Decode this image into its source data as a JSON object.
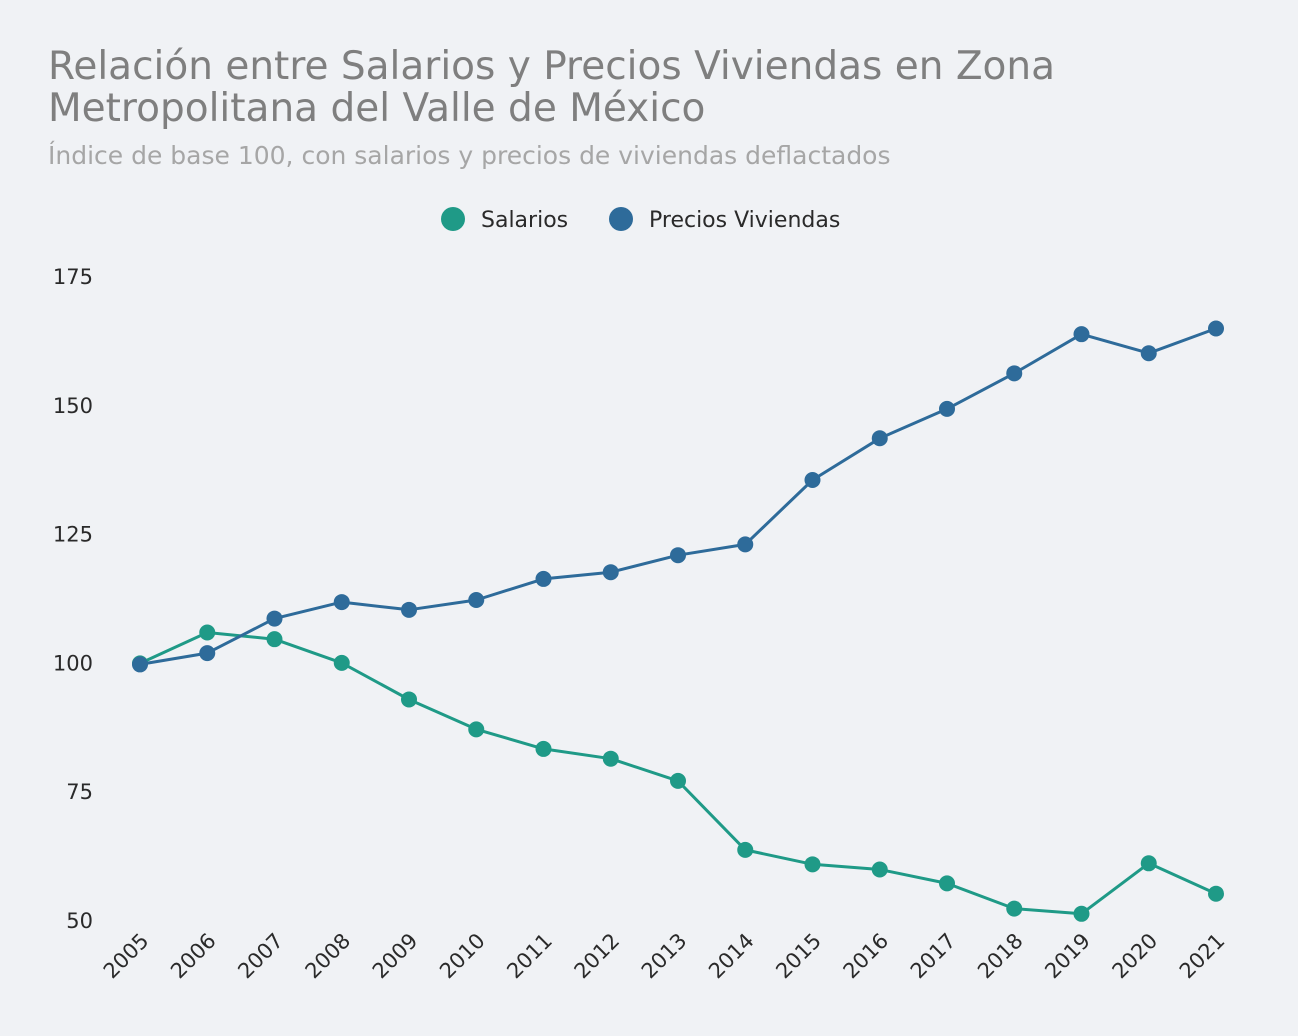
{
  "colors": {
    "background": "#f0f2f5",
    "salarios": "#1f9a87",
    "precios": "#2e6b9a"
  },
  "chart_data": {
    "type": "line",
    "title": "Relación entre Salarios y Precios Viviendas en Zona Metropolitana del Valle de México",
    "subtitle": "Índice de base 100, con salarios y precios de viviendas deflactados",
    "legend_position": "top-center",
    "grid": false,
    "x": [
      "2005",
      "2006",
      "2007",
      "2008",
      "2009",
      "2010",
      "2011",
      "2012",
      "2013",
      "2014",
      "2015",
      "2016",
      "2017",
      "2018",
      "2019",
      "2020",
      "2021"
    ],
    "ylim": [
      50,
      175
    ],
    "yticks": [
      50,
      75,
      100,
      125,
      150,
      175
    ],
    "series": [
      {
        "name": "Salarios",
        "color": "#1f9a87",
        "values": [
          100,
          106,
          104.7,
          100.1,
          93,
          87.2,
          83.4,
          81.5,
          77.2,
          63.8,
          61,
          60,
          57.3,
          52.4,
          51.4,
          61.2,
          55.3
        ]
      },
      {
        "name": "Precios Viviendas",
        "color": "#2e6b9a",
        "values": [
          99.8,
          102,
          108.7,
          111.9,
          110.4,
          112.3,
          116.4,
          117.7,
          121,
          123.1,
          135.6,
          143.7,
          149.4,
          156.3,
          163.9,
          160.2,
          165
        ]
      }
    ]
  }
}
